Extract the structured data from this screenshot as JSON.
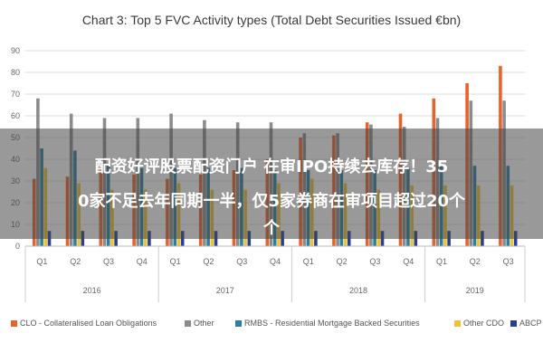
{
  "chart_data": {
    "type": "bar",
    "title": "Chart 3: Top 5 FVC Activity types (Total Debt Securities Issued €bn)",
    "ylim": [
      0,
      90
    ],
    "yticks": [
      0,
      10,
      20,
      30,
      40,
      50,
      60,
      70,
      80,
      90
    ],
    "grid": true,
    "legend_position": "bottom",
    "categories": [
      "Q1",
      "Q2",
      "Q3",
      "Q4",
      "Q1",
      "Q2",
      "Q3",
      "Q4",
      "Q1",
      "Q2",
      "Q3",
      "Q4",
      "Q1",
      "Q2",
      "Q3"
    ],
    "years": [
      {
        "label": "2016",
        "count": 4
      },
      {
        "label": "2017",
        "count": 4
      },
      {
        "label": "2018",
        "count": 4
      },
      {
        "label": "2019",
        "count": 3
      }
    ],
    "series": [
      {
        "name": "CLO - Collateralised Loan Obligations",
        "color": "#e8622a",
        "values": [
          31,
          32,
          36,
          33,
          31,
          33,
          35,
          40,
          50,
          51,
          57,
          61,
          68,
          75,
          83
        ]
      },
      {
        "name": "Other",
        "color": "#8c8c8c",
        "values": [
          68,
          61,
          59,
          59,
          61,
          58,
          57,
          57,
          52,
          52,
          56,
          55,
          59,
          67,
          67
        ]
      },
      {
        "name": "RMBS - Residential Mortgage Backed Securities",
        "color": "#2a7f9e",
        "values": [
          45,
          44,
          38,
          36,
          36,
          36,
          36,
          35,
          35,
          35,
          35,
          36,
          37,
          37,
          37
        ]
      },
      {
        "name": "Other CDO",
        "color": "#f1c232",
        "values": [
          36,
          29,
          26,
          26,
          29,
          26,
          26,
          29,
          31,
          29,
          26,
          28,
          28,
          28,
          28
        ]
      },
      {
        "name": "ABCP",
        "color": "#24408e",
        "values": [
          7,
          7,
          7,
          7,
          7,
          7,
          7,
          7,
          7,
          7,
          7,
          7,
          7,
          7,
          7
        ]
      }
    ]
  },
  "overlay": {
    "line1": "配资好评股票配资门户 在审IPO持续去库存！35",
    "line2": "0家不足去年同期一半，仅5家券商在审项目超过20个",
    "line3": "个"
  }
}
